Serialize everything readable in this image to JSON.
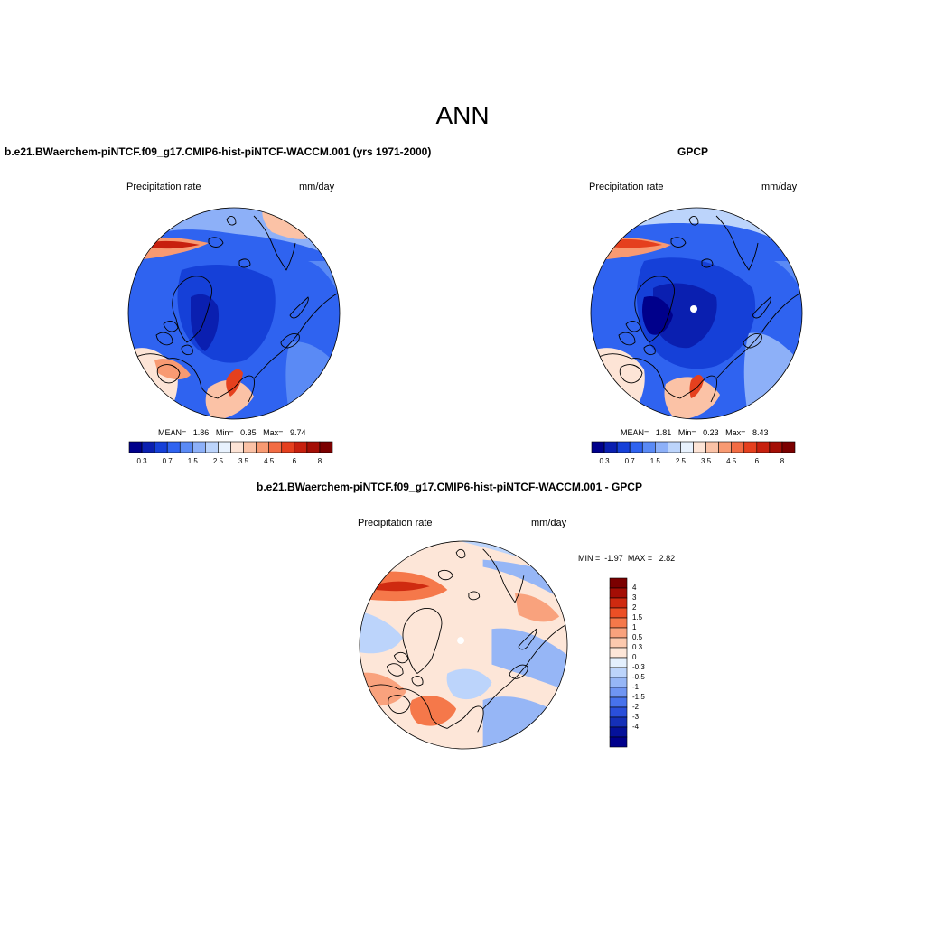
{
  "figure": {
    "title": "ANN"
  },
  "panels": [
    {
      "id": "model",
      "title": "b.e21.BWaerchem-piNTCF.f09_g17.CMIP6-hist-piNTCF-WACCM.001 (yrs 1971-2000)",
      "left_label": "Precipitation rate",
      "right_label": "mm/day",
      "stats": {
        "mean_label": "MEAN=",
        "mean": "1.86",
        "min_label": "Min=",
        "min": "0.35",
        "max_label": "Max=",
        "max": "9.74"
      }
    },
    {
      "id": "obs",
      "title": "GPCP",
      "left_label": "Precipitation rate",
      "right_label": "mm/day",
      "stats": {
        "mean_label": "MEAN=",
        "mean": "1.81",
        "min_label": "Min=",
        "min": "0.23",
        "max_label": "Max=",
        "max": "8.43"
      }
    },
    {
      "id": "diff",
      "title": "b.e21.BWaerchem-piNTCF.f09_g17.CMIP6-hist-piNTCF-WACCM.001 - GPCP",
      "left_label": "Precipitation rate",
      "right_label": "mm/day",
      "stats": {
        "min_label": "MIN =",
        "min": "-1.97",
        "max_label": "MAX =",
        "max": "2.82"
      }
    }
  ],
  "colorbars": {
    "abs": {
      "colors": [
        "#00008b",
        "#0a1fb0",
        "#1540d8",
        "#2f63f0",
        "#5a8af5",
        "#8db0f8",
        "#bcd4fb",
        "#e8f2fe",
        "#fde4d6",
        "#fbc2a6",
        "#f89a72",
        "#f26c44",
        "#e5401e",
        "#c7200e",
        "#a40e05",
        "#7b0000"
      ],
      "labels": [
        "0.3",
        "0.7",
        "1.5",
        "2.5",
        "3.5",
        "4.5",
        "6",
        "8"
      ]
    },
    "diff": {
      "colors": [
        "#7b0000",
        "#a40e05",
        "#cf2a10",
        "#ec4f25",
        "#f5784a",
        "#f9a27d",
        "#fcc9ae",
        "#fde6d8",
        "#e4f0fd",
        "#bcd4fb",
        "#96b6f6",
        "#6f95f2",
        "#4772ec",
        "#2a4fda",
        "#1530b8",
        "#05119a",
        "#00008b"
      ],
      "labels": [
        "4",
        "3",
        "2",
        "1.5",
        "1",
        "0.5",
        "0.3",
        "0",
        "-0.3",
        "-0.5",
        "-1",
        "-1.5",
        "-2",
        "-3",
        "-4"
      ]
    }
  }
}
